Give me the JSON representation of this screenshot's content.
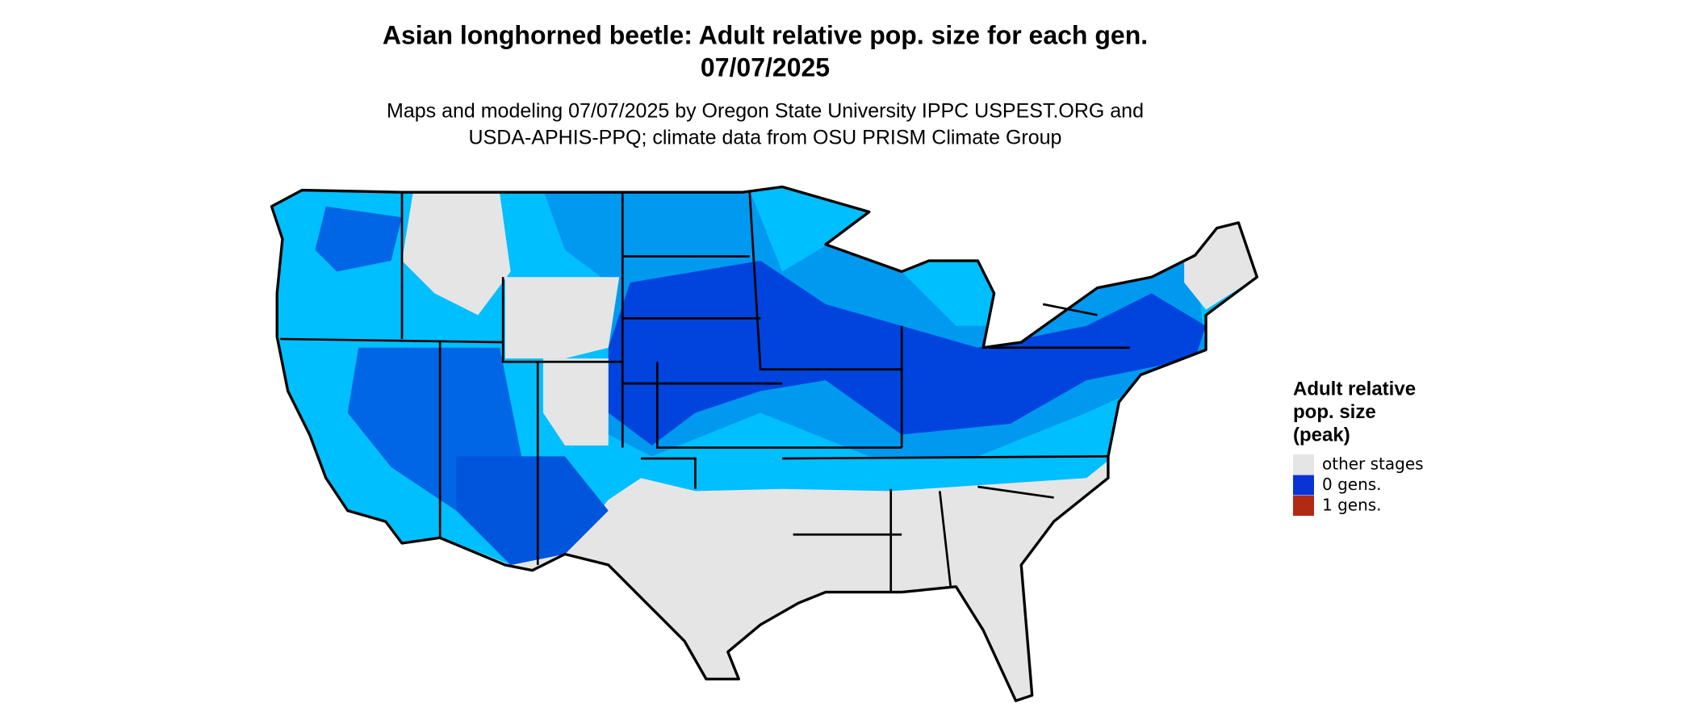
{
  "title_lines": [
    "Asian longhorned beetle: Adult relative pop. size for each gen.",
    "07/07/2025"
  ],
  "subtitle_lines": [
    "Maps and modeling 07/07/2025 by Oregon State University IPPC USPEST.ORG and",
    "USDA-APHIS-PPQ; climate data from OSU PRISM Climate Group"
  ],
  "legend": {
    "title_lines": [
      "Adult relative",
      "pop. size",
      "(peak)"
    ],
    "items": [
      {
        "label": "other stages",
        "color": "#e5e5e5"
      },
      {
        "label": "0 gens.",
        "color": "#0a33d6"
      },
      {
        "label": "1 gens.",
        "color": "#b22a14"
      }
    ]
  }
}
